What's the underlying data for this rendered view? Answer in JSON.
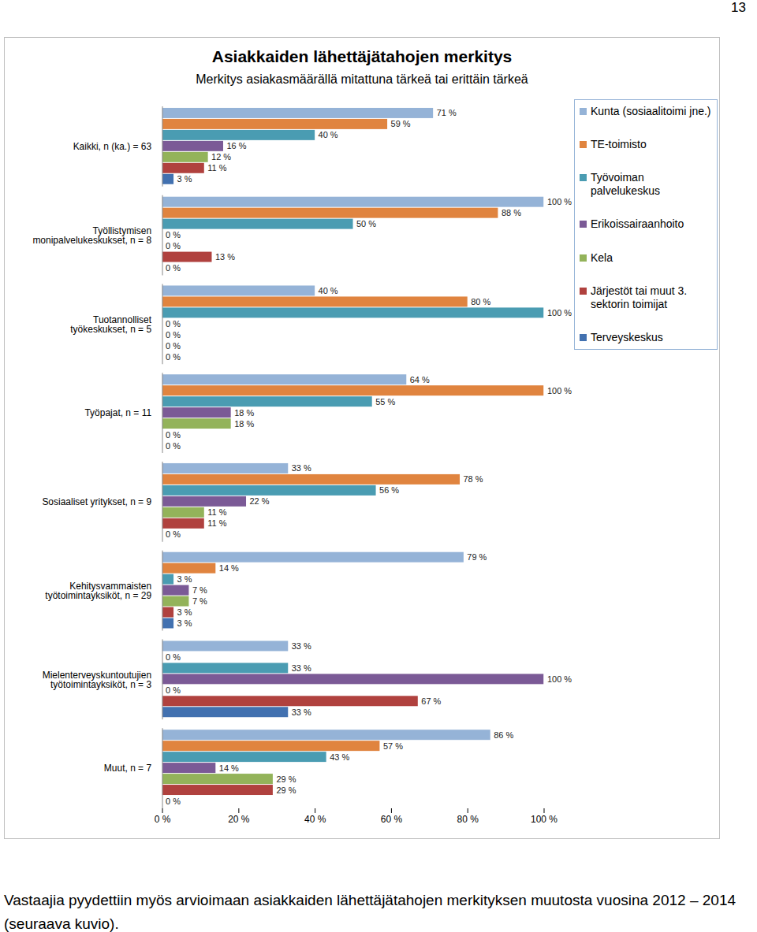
{
  "page": {
    "number": "13",
    "caption": "Vastaajia pyydettiin myös arvioimaan asiakkaiden lähettäjätahojen merkityksen muutosta vuosina 2012 – 2014 (seuraava kuvio)."
  },
  "chart_data": {
    "type": "bar",
    "orientation": "horizontal",
    "title": "Asiakkaiden lähettäjätahojen merkitys",
    "subtitle": "Merkitys asiakasmäärällä mitattuna tärkeä tai erittäin tärkeä",
    "categories": [
      "Kaikki, n (ka.) = 63",
      "Työllistymisen\nmonipalvelukeskukset, n = 8",
      "Tuotannolliset\ntyökeskukset, n = 5",
      "Työpajat, n = 11",
      "Sosiaaliset yritykset, n = 9",
      "Kehitysvammaisten\ntyötoimintayksiköt, n = 29",
      "Mielenterveyskuntoutujien\ntyötoimintayksiköt, n = 3",
      "Muut, n = 7"
    ],
    "series": [
      {
        "name": "Kunta (sosiaalitoimi jne.)",
        "color": "#95b3d7",
        "values": [
          71,
          100,
          40,
          64,
          33,
          79,
          33,
          86
        ],
        "value_labels": [
          "71 %",
          "100 %",
          "40 %",
          "64 %",
          "33 %",
          "79 %",
          "33 %",
          "86 %"
        ]
      },
      {
        "name": "TE-toimisto",
        "color": "#e0843f",
        "values": [
          59,
          88,
          80,
          100,
          78,
          14,
          0,
          57
        ],
        "value_labels": [
          "59 %",
          "88 %",
          "80 %",
          "100 %",
          "78 %",
          "14 %",
          "0 %",
          "57 %"
        ]
      },
      {
        "name": "Työvoiman palvelukeskus",
        "color": "#4a9cb2",
        "values": [
          40,
          50,
          100,
          55,
          56,
          3,
          33,
          43
        ],
        "value_labels": [
          "40 %",
          "50 %",
          "100 %",
          "55 %",
          "56 %",
          "3 %",
          "33 %",
          "43 %"
        ]
      },
      {
        "name": "Erikoissairaanhoito",
        "color": "#7b5a96",
        "values": [
          16,
          0,
          0,
          18,
          22,
          7,
          100,
          14
        ],
        "value_labels": [
          "16 %",
          "0 %",
          "0 %",
          "18 %",
          "22 %",
          "7 %",
          "100 %",
          "14 %"
        ]
      },
      {
        "name": "Kela",
        "color": "#93b35a",
        "values": [
          12,
          0,
          0,
          18,
          11,
          7,
          0,
          29
        ],
        "value_labels": [
          "12 %",
          "0 %",
          "0 %",
          "18 %",
          "11 %",
          "7 %",
          "0 %",
          "29 %"
        ]
      },
      {
        "name": "Järjestöt tai muut 3. sektorin toimijat",
        "color": "#b0413e",
        "values": [
          11,
          13,
          0,
          0,
          11,
          3,
          67,
          29
        ],
        "value_labels": [
          "11 %",
          "13 %",
          "0 %",
          "0 %",
          "11 %",
          "3 %",
          "67 %",
          "29 %"
        ]
      },
      {
        "name": "Terveyskeskus",
        "color": "#4271b0",
        "values": [
          3,
          0,
          0,
          0,
          0,
          3,
          33,
          0
        ],
        "value_labels": [
          "3 %",
          "0 %",
          "0 %",
          "0 %",
          "0 %",
          "3 %",
          "33 %",
          "0 %"
        ]
      }
    ],
    "xlim": [
      0,
      100
    ],
    "xticks": [
      {
        "value": 0,
        "label": "0 %"
      },
      {
        "value": 20,
        "label": "20 %"
      },
      {
        "value": 40,
        "label": "40 %"
      },
      {
        "value": 60,
        "label": "60 %"
      },
      {
        "value": 80,
        "label": "80 %"
      },
      {
        "value": 100,
        "label": "100 %"
      }
    ],
    "data_labels": true,
    "grid": false,
    "legend": "top-right"
  }
}
